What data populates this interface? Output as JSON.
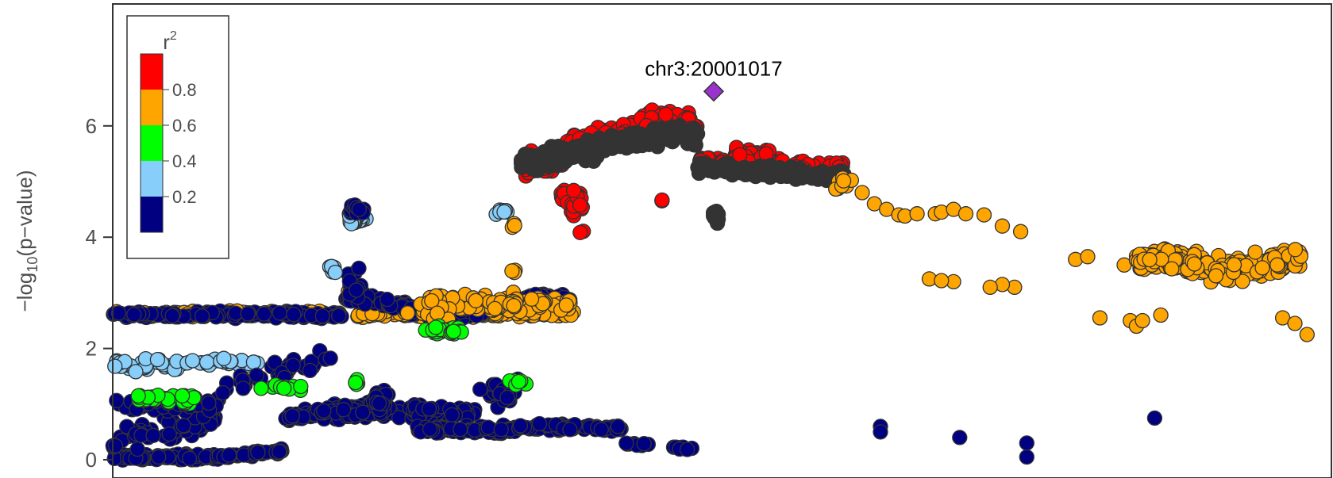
{
  "chart_data": {
    "type": "scatter",
    "title": "",
    "ylabel_parts": [
      "−log",
      "10",
      "(p−value)"
    ],
    "ylim": [
      0,
      7.4
    ],
    "yticks": [
      0,
      2,
      4,
      6
    ],
    "ytick_labels": [
      "0",
      "2",
      "4",
      "6"
    ],
    "lead_snp": {
      "label": "chr3:20001017",
      "y": 6.62,
      "color": "#9933CC"
    },
    "legend": {
      "title_base": "r",
      "title_sup": "2",
      "position": "top-left",
      "colors": [
        "#000080",
        "#87CEFA",
        "#00FF00",
        "#FFA500",
        "#FF0000"
      ],
      "labels": [
        "0.2",
        "0.4",
        "0.6",
        "0.8"
      ]
    },
    "r2_colors": {
      "navy": "#000080",
      "lightblue": "#87CEFA",
      "green": "#00FF00",
      "orange": "#FFA500",
      "red": "#FF0000"
    },
    "point_stroke": "#333333"
  }
}
